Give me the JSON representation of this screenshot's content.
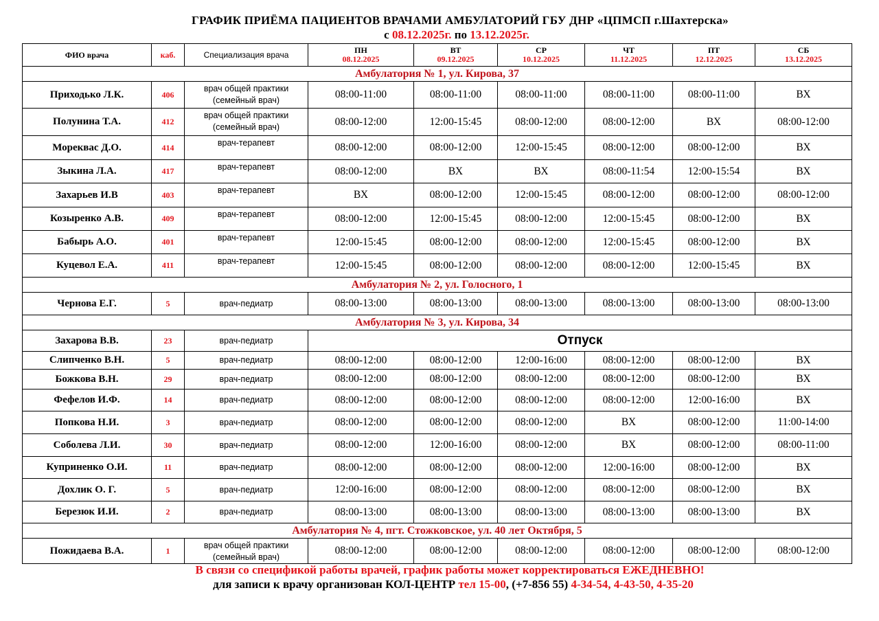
{
  "title": "ГРАФИК  ПРИЁМА  ПАЦИЕНТОВ  ВРАЧАМИ  АМБУЛАТОРИЙ  ГБУ ДНР «ЦПМСП г.Шахтерска»",
  "period": {
    "from_label": "с ",
    "from": "08.12.2025г.",
    "to_label": " по ",
    "to": "13.12.2025г."
  },
  "header": {
    "name": "ФИО  врача",
    "cab": "каб.",
    "spec": "Специализация врача",
    "days": [
      {
        "day": "ПН",
        "date": "08.12.2025"
      },
      {
        "day": "ВТ",
        "date": "09.12.2025"
      },
      {
        "day": "СР",
        "date": "10.12.2025"
      },
      {
        "day": "ЧТ",
        "date": "11.12.2025"
      },
      {
        "day": "ПТ",
        "date": "12.12.2025"
      },
      {
        "day": "СБ",
        "date": "13.12.2025"
      }
    ]
  },
  "sections": [
    {
      "title": "Амбулатория № 1, ул. Кирова, 37",
      "rows": [
        {
          "name": "Приходько Л.К.",
          "cab": "406",
          "spec": [
            "врач общей практики",
            "(семейный врач)"
          ],
          "h": 39,
          "times": [
            "08:00-11:00",
            "08:00-11:00",
            "08:00-11:00",
            "08:00-11:00",
            "08:00-11:00",
            "ВХ"
          ]
        },
        {
          "name": "Полунина Т.А.",
          "cab": "412",
          "spec": [
            "врач общей практики",
            "(семейный врач)"
          ],
          "h": 40,
          "times": [
            "08:00-12:00",
            "12:00-15:45",
            "08:00-12:00",
            "08:00-12:00",
            "ВХ",
            "08:00-12:00"
          ]
        },
        {
          "name": "Морекваc Д.О.",
          "cab": "414",
          "spec": [
            "врач-терапевт"
          ],
          "h": 35,
          "times": [
            "08:00-12:00",
            "08:00-12:00",
            "12:00-15:45",
            "08:00-12:00",
            "08:00-12:00",
            "ВХ"
          ]
        },
        {
          "name": "Зыкина Л.А.",
          "cab": "417",
          "spec": [
            "врач-терапевт"
          ],
          "h": 34,
          "times": [
            "08:00-12:00",
            "ВХ",
            "ВХ",
            "08:00-11:54",
            "12:00-15:54",
            "ВХ"
          ]
        },
        {
          "name": "Захарьев И.В",
          "cab": "403",
          "spec": [
            "врач-терапевт"
          ],
          "h": 35,
          "times": [
            "ВХ",
            "08:00-12:00",
            "12:00-15:45",
            "08:00-12:00",
            "08:00-12:00",
            "08:00-12:00"
          ]
        },
        {
          "name": "Козыренко А.В.",
          "cab": "409",
          "spec": [
            "врач-терапевт"
          ],
          "h": 34,
          "times": [
            "08:00-12:00",
            "12:00-15:45",
            "08:00-12:00",
            "12:00-15:45",
            "08:00-12:00",
            "ВХ"
          ]
        },
        {
          "name": "Бабырь А.О.",
          "cab": "401",
          "spec": [
            "врач-терапевт"
          ],
          "h": 34,
          "times": [
            "12:00-15:45",
            "08:00-12:00",
            "08:00-12:00",
            "12:00-15:45",
            "08:00-12:00",
            "ВХ"
          ]
        },
        {
          "name": "Куцевол Е.А.",
          "cab": "411",
          "spec": [
            "врач-терапевт"
          ],
          "h": 34,
          "times": [
            "12:00-15:45",
            "08:00-12:00",
            "08:00-12:00",
            "08:00-12:00",
            "12:00-15:45",
            "ВХ"
          ]
        }
      ]
    },
    {
      "title": "Амбулатория № 2,  ул. Голосного, 1",
      "rows": [
        {
          "name": "Чернова Е.Г.",
          "cab": "5",
          "spec": [
            "врач-педиатр"
          ],
          "mid": true,
          "h": 33,
          "times": [
            "08:00-13:00",
            "08:00-13:00",
            "08:00-13:00",
            "08:00-13:00",
            "08:00-13:00",
            "08:00-13:00"
          ]
        }
      ]
    },
    {
      "title": "Амбулатория № 3, ул. Кирова, 34",
      "rows": [
        {
          "name": "Захарова В.В.",
          "cab": "23",
          "spec": [
            "врач-педиатр"
          ],
          "mid": true,
          "h": 31,
          "vacation": "Отпуск"
        },
        {
          "name": "Слипченко В.Н.",
          "cab": "5",
          "spec": [
            "врач-педиатр"
          ],
          "mid": true,
          "h": 26,
          "times": [
            "08:00-12:00",
            "08:00-12:00",
            "12:00-16:00",
            "08:00-12:00",
            "08:00-12:00",
            "ВХ"
          ]
        },
        {
          "name": "Божкова В.Н.",
          "cab": "29",
          "spec": [
            "врач-педиатр"
          ],
          "mid": true,
          "h": 29,
          "times": [
            "08:00-12:00",
            "08:00-12:00",
            "08:00-12:00",
            "08:00-12:00",
            "08:00-12:00",
            "ВХ"
          ]
        },
        {
          "name": "Фефелов И.Ф.",
          "cab": "14",
          "spec": [
            "врач-педиатр"
          ],
          "mid": true,
          "h": 32,
          "times": [
            "08:00-12:00",
            "08:00-12:00",
            "08:00-12:00",
            "08:00-12:00",
            "12:00-16:00",
            "ВХ"
          ]
        },
        {
          "name": "Попкова Н.И.",
          "cab": "3",
          "spec": [
            "врач-педиатр"
          ],
          "mid": true,
          "h": 33,
          "times": [
            "08:00-12:00",
            "08:00-12:00",
            "08:00-12:00",
            "ВХ",
            "08:00-12:00",
            "11:00-14:00"
          ]
        },
        {
          "name": "Соболева Л.И.",
          "cab": "30",
          "spec": [
            "врач-педиатр"
          ],
          "mid": true,
          "h": 33,
          "times": [
            "08:00-12:00",
            "12:00-16:00",
            "08:00-12:00",
            "ВХ",
            "08:00-12:00",
            "08:00-11:00"
          ]
        },
        {
          "name": "Куприненко О.И.",
          "cab": "11",
          "spec": [
            "врач-педиатр"
          ],
          "mid": true,
          "h": 32,
          "times": [
            "08:00-12:00",
            "08:00-12:00",
            "08:00-12:00",
            "12:00-16:00",
            "08:00-12:00",
            "ВХ"
          ]
        },
        {
          "name": "Дохлик О. Г.",
          "cab": "5",
          "spec": [
            "врач-педиатр"
          ],
          "mid": true,
          "h": 33,
          "times": [
            "12:00-16:00",
            "08:00-12:00",
            "08:00-12:00",
            "08:00-12:00",
            "08:00-12:00",
            "ВХ"
          ]
        },
        {
          "name": "Березюк И.И.",
          "cab": "2",
          "spec": [
            "врач-педиатр"
          ],
          "mid": true,
          "h": 32,
          "times": [
            "08:00-13:00",
            "08:00-13:00",
            "08:00-13:00",
            "08:00-13:00",
            "08:00-13:00",
            "ВХ"
          ]
        }
      ]
    },
    {
      "title": "Амбулатория № 4,  пгт. Стожковское,  ул. 40 лет Октября, 5",
      "rows": [
        {
          "name": "Пожидаева В.А.",
          "cab": "1",
          "spec": [
            "врач общей практики",
            "(семейный врач)"
          ],
          "h": 35,
          "times": [
            "08:00-12:00",
            "08:00-12:00",
            "08:00-12:00",
            "08:00-12:00",
            "08:00-12:00",
            "08:00-12:00"
          ]
        }
      ]
    }
  ],
  "footer": {
    "notice": "В связи со спецификой работы врачей, график работы может корректироваться ЕЖЕДНЕВНО!",
    "callcenter_label": "для записи к врачу организован КОЛ-ЦЕНТР ",
    "phone_short": " тел 15-00",
    "phone_code": ", (+7-856 55) ",
    "phones": "4-34-54, 4-43-50, 4-35-20"
  },
  "colors": {
    "accent_red": "#e3141b",
    "section_red": "#c0141b"
  }
}
